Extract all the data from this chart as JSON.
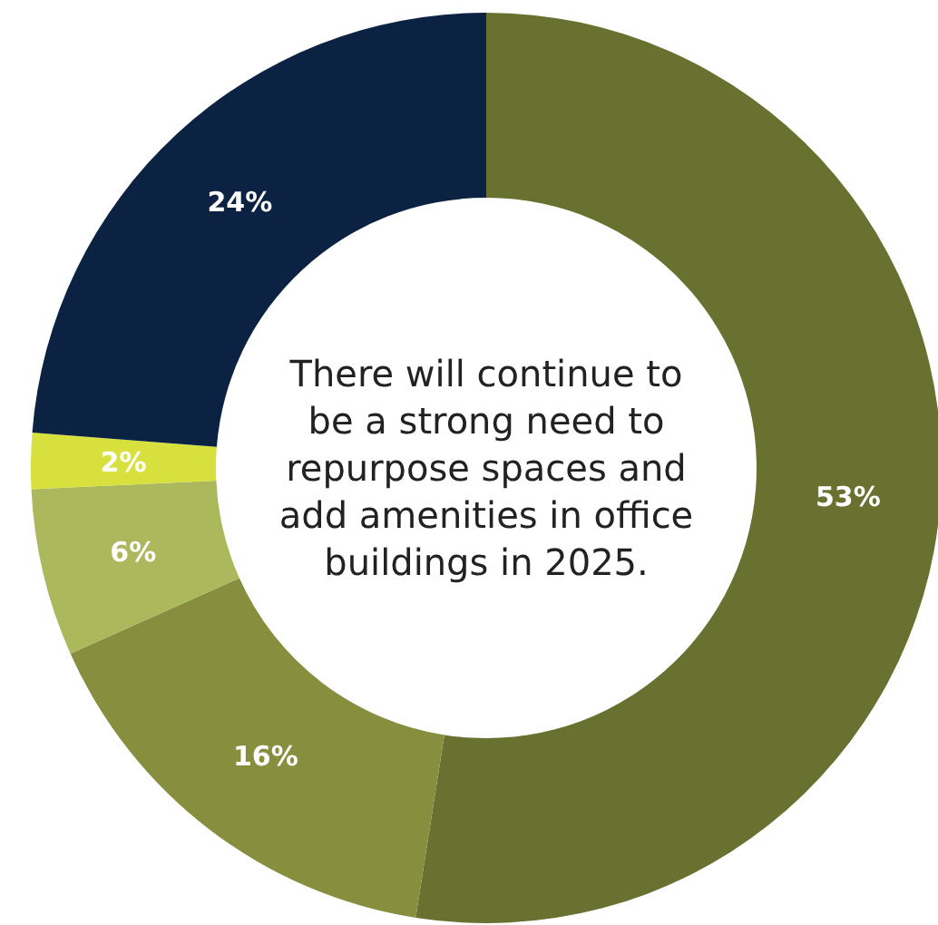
{
  "chart_data": {
    "type": "donut",
    "categories": [
      null,
      null,
      null,
      null,
      null
    ],
    "values": [
      53,
      16,
      6,
      2,
      24
    ],
    "colors": [
      "#68712f",
      "#878f3e",
      "#abb85c",
      "#d7e03d",
      "#0b2242"
    ],
    "value_labels": [
      "53%",
      "16%",
      "6%",
      "2%",
      "24%"
    ],
    "annotations": [
      "There will continue to be a strong need to repurpose spaces and add amenities in office buildings in 2025."
    ]
  }
}
